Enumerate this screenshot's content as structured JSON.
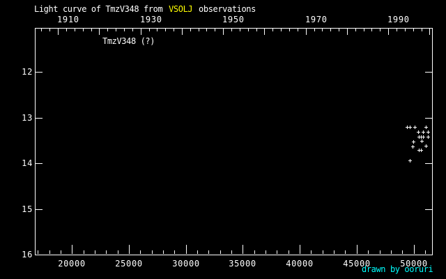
{
  "chart_data": {
    "type": "scatter",
    "title": "Light curve of TmzV348 from VSOLJ observations",
    "title_parts": {
      "pre": "Light curve of TmzV348 from ",
      "brand": "VSOLJ",
      "post": " observations"
    },
    "annotation": "TmzV348 (?)",
    "credit": "drawn by ooruri",
    "marker": "plus",
    "legend": "none",
    "grid": "off",
    "colors": {
      "background": "#000000",
      "foreground": "#ffffff",
      "brand": "#ffff00",
      "credit": "#00ffff"
    },
    "x_axis_bottom": {
      "range": [
        16740,
        51620
      ],
      "minor_step": 1000,
      "major_step": 5000,
      "major_start": 20000,
      "major_end": 50000,
      "tick_labels": [
        "20000",
        "25000",
        "30000",
        "35000",
        "40000",
        "45000",
        "50000"
      ]
    },
    "x_axis_top": {
      "unit": "year",
      "range": [
        1904.4,
        2000.6
      ],
      "minor_step": 2,
      "major_step": 10,
      "major_start": 1910,
      "major_end": 2000,
      "labeled_years": [
        1910,
        1930,
        1950,
        1970,
        1990
      ]
    },
    "y_axis": {
      "range": [
        11.03,
        16.0
      ],
      "increasing": "downward",
      "ticks": [
        12,
        13,
        14,
        15,
        16
      ],
      "tick_labels": [
        "12",
        "13",
        "14",
        "15",
        "16"
      ]
    },
    "points": [
      {
        "jd": 49400,
        "mag": 13.2
      },
      {
        "jd": 49650,
        "mag": 13.2
      },
      {
        "jd": 50070,
        "mag": 13.2
      },
      {
        "jd": 51090,
        "mag": 13.2
      },
      {
        "jd": 50380,
        "mag": 13.31
      },
      {
        "jd": 50810,
        "mag": 13.31
      },
      {
        "jd": 51250,
        "mag": 13.31
      },
      {
        "jd": 50440,
        "mag": 13.42
      },
      {
        "jd": 50620,
        "mag": 13.42
      },
      {
        "jd": 50810,
        "mag": 13.41
      },
      {
        "jd": 51250,
        "mag": 13.42
      },
      {
        "jd": 49950,
        "mag": 13.52
      },
      {
        "jd": 50690,
        "mag": 13.51
      },
      {
        "jd": 49890,
        "mag": 13.63
      },
      {
        "jd": 51090,
        "mag": 13.62
      },
      {
        "jd": 50440,
        "mag": 13.7
      },
      {
        "jd": 50660,
        "mag": 13.7
      },
      {
        "jd": 49690,
        "mag": 13.93
      }
    ]
  }
}
